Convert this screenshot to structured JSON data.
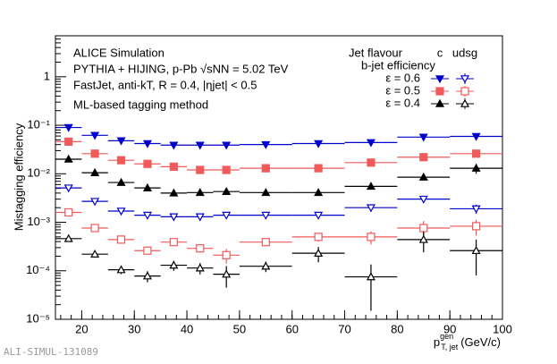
{
  "chart_data": {
    "type": "scatter",
    "annotations": [
      "ALICE Simulation",
      "PYTHIA + HIJING, p-Pb √sNN = 5.02 TeV",
      "FastJet, anti-kT, R = 0.4, |ηjet| < 0.5",
      "ML-based tagging method"
    ],
    "ylabel": "Mistagging efficiency",
    "xlabel": {
      "main": "p",
      "sub": "T, jet",
      "sup": "gen",
      "unit": "(GeV/c)"
    },
    "footer": "ALI-SIMUL-131089",
    "legend": {
      "title": "Jet flavour",
      "columns": [
        "c",
        "udsg"
      ],
      "subtitle": "b-jet efficiency",
      "rows": [
        "ε = 0.6",
        "ε = 0.5",
        "ε = 0.4"
      ]
    },
    "x": [
      17.5,
      22.5,
      27.5,
      32.5,
      37.5,
      42.5,
      47.5,
      55,
      65,
      75,
      85,
      95
    ],
    "bins": [
      15,
      20,
      25,
      30,
      35,
      40,
      45,
      50,
      60,
      70,
      80,
      90,
      100
    ],
    "xlim": [
      15,
      100
    ],
    "xticks": [
      20,
      30,
      40,
      50,
      60,
      70,
      80,
      90,
      100
    ],
    "log_y": true,
    "ylim": [
      1e-05,
      7
    ],
    "yticks": [
      {
        "value": 1e-05,
        "label": "10⁻⁵"
      },
      {
        "value": 0.0001,
        "label": "10⁻⁴"
      },
      {
        "value": 0.001,
        "label": "10⁻³"
      },
      {
        "value": 0.01,
        "label": "10⁻²"
      },
      {
        "value": 0.1,
        "label": "10⁻¹"
      },
      1
    ],
    "series": [
      {
        "row": 0,
        "column": 0,
        "marker": "down",
        "filled": true,
        "color": "#0000cc",
        "values": [
          0.09,
          0.062,
          0.048,
          0.042,
          0.039,
          0.039,
          0.039,
          0.04,
          0.042,
          0.044,
          0.057,
          0.059
        ]
      },
      {
        "row": 1,
        "column": 0,
        "marker": "square",
        "filled": true,
        "color": "#f05a5a",
        "values": [
          0.046,
          0.026,
          0.019,
          0.016,
          0.014,
          0.012,
          0.012,
          0.013,
          0.013,
          0.017,
          0.022,
          0.026
        ]
      },
      {
        "row": 2,
        "column": 0,
        "marker": "up",
        "filled": true,
        "color": "#000000",
        "values": [
          0.02,
          0.0105,
          0.0066,
          0.0051,
          0.004,
          0.0041,
          0.0043,
          0.0041,
          0.0041,
          0.0055,
          0.0085,
          0.013
        ],
        "errors": [
          0.001,
          0.0005,
          0.0003,
          0.0003,
          0.0002,
          0.0002,
          0.0002,
          0.0002,
          0.0003,
          0.0005,
          0.001,
          0.003
        ]
      },
      {
        "row": 0,
        "column": 1,
        "marker": "down",
        "filled": false,
        "color": "#0000cc",
        "values": [
          0.0051,
          0.0027,
          0.0017,
          0.0014,
          0.0013,
          0.0013,
          0.0014,
          0.0014,
          0.0014,
          0.002,
          0.003,
          0.0019
        ],
        "errors": [
          0.0002,
          0.0001,
          0.0001,
          0.0001,
          0.0001,
          0.0001,
          0.0001,
          0.0001,
          0.0001,
          0.0002,
          0.0003,
          0.0004
        ]
      },
      {
        "row": 1,
        "column": 1,
        "marker": "square",
        "filled": false,
        "color": "#f05a5a",
        "values": [
          0.0016,
          0.00076,
          0.00044,
          0.00026,
          0.00039,
          0.00029,
          0.00021,
          0.00039,
          0.0005,
          0.0005,
          0.00076,
          0.00083
        ],
        "errors": [
          0.0001,
          6e-05,
          5e-05,
          4e-05,
          5e-05,
          5e-05,
          7e-05,
          5e-05,
          0.0001,
          0.00015,
          0.0003,
          0.0003
        ]
      },
      {
        "row": 2,
        "column": 1,
        "marker": "up",
        "filled": false,
        "color": "#000000",
        "values": [
          0.00046,
          0.00022,
          0.000105,
          7.8e-05,
          0.00013,
          0.000114,
          8.5e-05,
          0.000124,
          0.00023,
          7.5e-05,
          0.00044,
          0.00026
        ],
        "errors": [
          6e-05,
          3e-05,
          2e-05,
          2e-05,
          3e-05,
          3e-05,
          4e-05,
          3e-05,
          8e-05,
          6e-05,
          0.0002,
          0.00018
        ]
      }
    ]
  }
}
